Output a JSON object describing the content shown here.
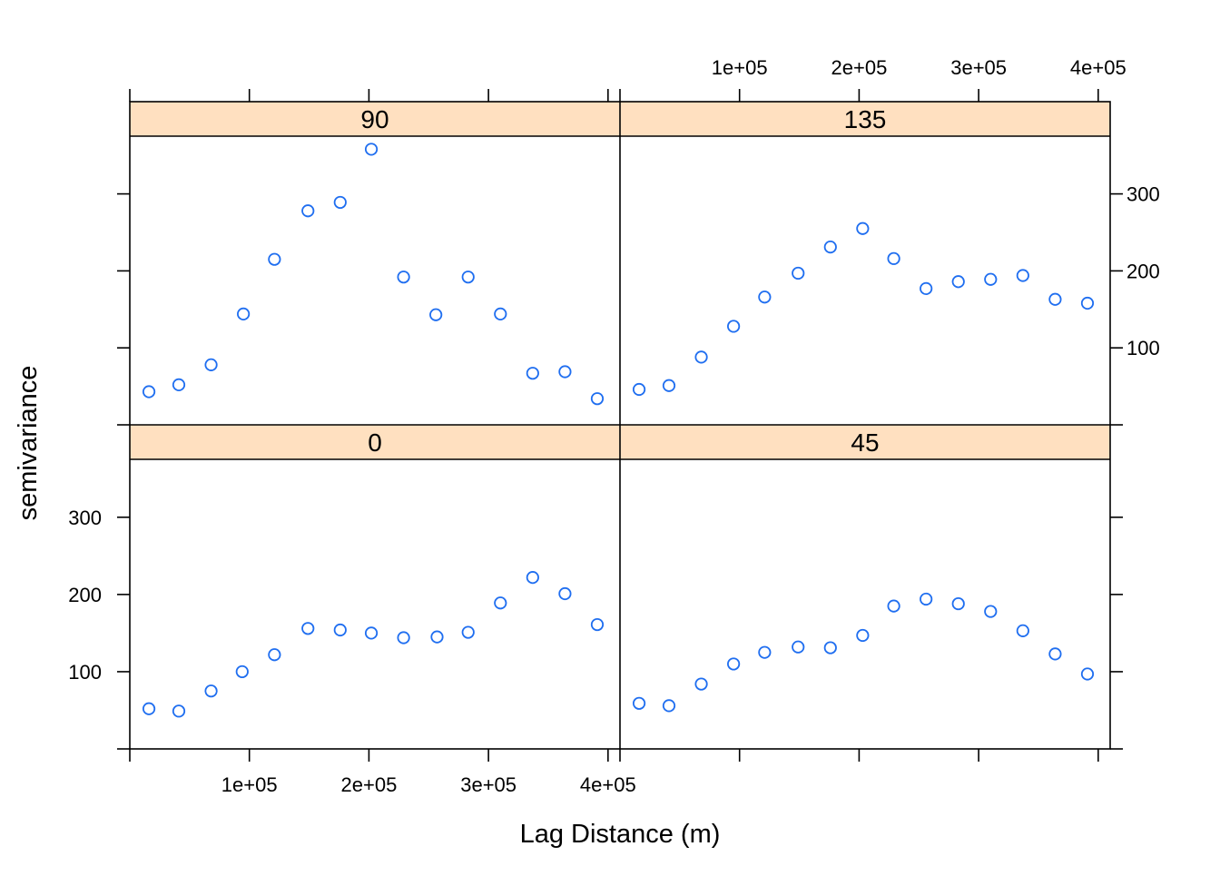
{
  "chart_data": {
    "type": "scatter",
    "xlabel": "Lag Distance (m)",
    "ylabel": "semivariance",
    "xlim": [
      0,
      410000
    ],
    "ylim": [
      0,
      375
    ],
    "x_ticks": [
      100000,
      200000,
      300000,
      400000
    ],
    "x_tick_labels": [
      "1e+05",
      "2e+05",
      "3e+05",
      "4e+05"
    ],
    "y_ticks": [
      100,
      200,
      300
    ],
    "y_tick_labels": [
      "100",
      "200",
      "300"
    ],
    "marker": "open-circle",
    "point_color": "#1f6ef0",
    "strip_color": "#ffe0c0",
    "grid": false,
    "layout": "2x2 panels",
    "panels": [
      {
        "label": "90",
        "x": [
          16000,
          41000,
          68000,
          95000,
          121000,
          149000,
          176000,
          202000,
          229000,
          256000,
          283000,
          310000,
          337000,
          364000,
          391000
        ],
        "y": [
          43,
          52,
          78,
          144,
          215,
          278,
          289,
          358,
          192,
          143,
          192,
          144,
          67,
          69,
          34
        ]
      },
      {
        "label": "135",
        "x": [
          16000,
          41000,
          68000,
          95000,
          121000,
          149000,
          176000,
          203000,
          229000,
          256000,
          283000,
          310000,
          337000,
          364000,
          391000
        ],
        "y": [
          46,
          51,
          88,
          128,
          166,
          197,
          231,
          255,
          216,
          177,
          186,
          189,
          194,
          163,
          158
        ]
      },
      {
        "label": "0",
        "x": [
          16000,
          41000,
          68000,
          94000,
          121000,
          149000,
          176000,
          202000,
          229000,
          257000,
          283000,
          310000,
          337000,
          364000,
          391000
        ],
        "y": [
          52,
          49,
          75,
          100,
          122,
          156,
          154,
          150,
          144,
          145,
          151,
          189,
          222,
          201,
          161
        ]
      },
      {
        "label": "45",
        "x": [
          16000,
          41000,
          68000,
          95000,
          121000,
          149000,
          176000,
          203000,
          229000,
          256000,
          283000,
          310000,
          337000,
          364000,
          391000
        ],
        "y": [
          59,
          56,
          84,
          110,
          125,
          132,
          131,
          147,
          185,
          194,
          188,
          178,
          153,
          123,
          97
        ]
      }
    ]
  }
}
